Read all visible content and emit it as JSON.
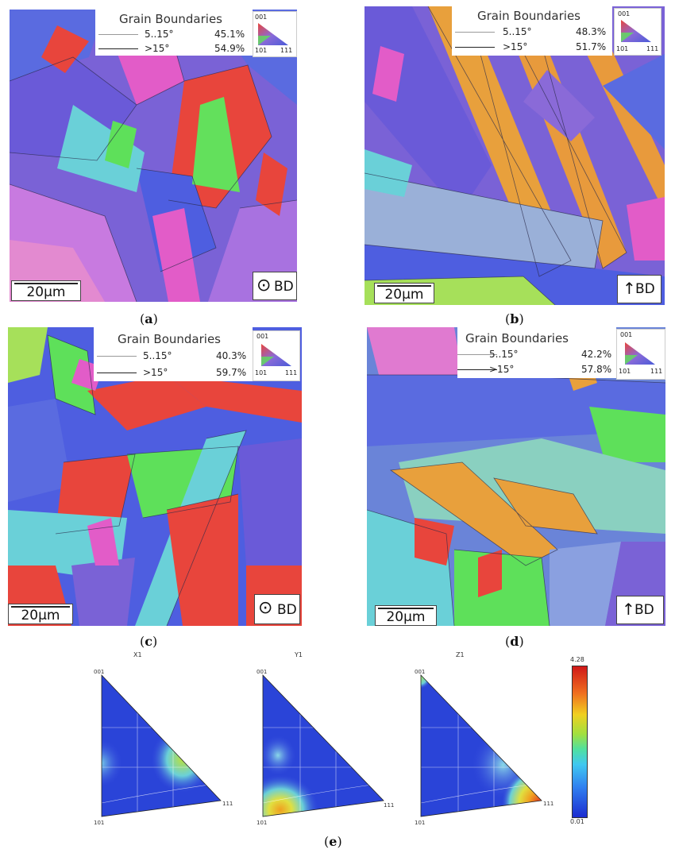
{
  "legend_title": "Grain Boundaries",
  "low_angle_label": "5..15°",
  "high_angle_label": ">15°",
  "scale_label": "20μm",
  "bd_label": "BD",
  "ipf_key": {
    "top": "001",
    "bottom_left": "101",
    "bottom_right": "111"
  },
  "panels": [
    {
      "id": "a",
      "caption": "a",
      "low_pct": "45.1%",
      "high_pct": "54.9%",
      "bd_symbol": "⊙"
    },
    {
      "id": "b",
      "caption": "b",
      "low_pct": "48.3%",
      "high_pct": "51.7%",
      "bd_symbol": "↑"
    },
    {
      "id": "c",
      "caption": "c",
      "low_pct": "40.3%",
      "high_pct": "59.7%",
      "bd_symbol": "⊙"
    },
    {
      "id": "d",
      "caption": "d",
      "low_pct": "42.2%",
      "high_pct": "57.8%",
      "bd_symbol": "↑"
    }
  ],
  "pole_figures": [
    {
      "title": "X1",
      "top": "001",
      "bottom_left": "101",
      "bottom_right": "111"
    },
    {
      "title": "Y1",
      "top": "001",
      "bottom_left": "101",
      "bottom_right": "111"
    },
    {
      "title": "Z1",
      "top": "001",
      "bottom_left": "101",
      "bottom_right": "111"
    }
  ],
  "colorbar": {
    "max": "4.28",
    "min": "0.01"
  },
  "caption_e": "e",
  "colors": {
    "red": "#e8453c",
    "blue": "#4a5bd8",
    "purple": "#8a6ad8",
    "green": "#5ee05a",
    "pink": "#e07ad8",
    "orange": "#e89a3c",
    "cyan": "#6ad0d8"
  }
}
